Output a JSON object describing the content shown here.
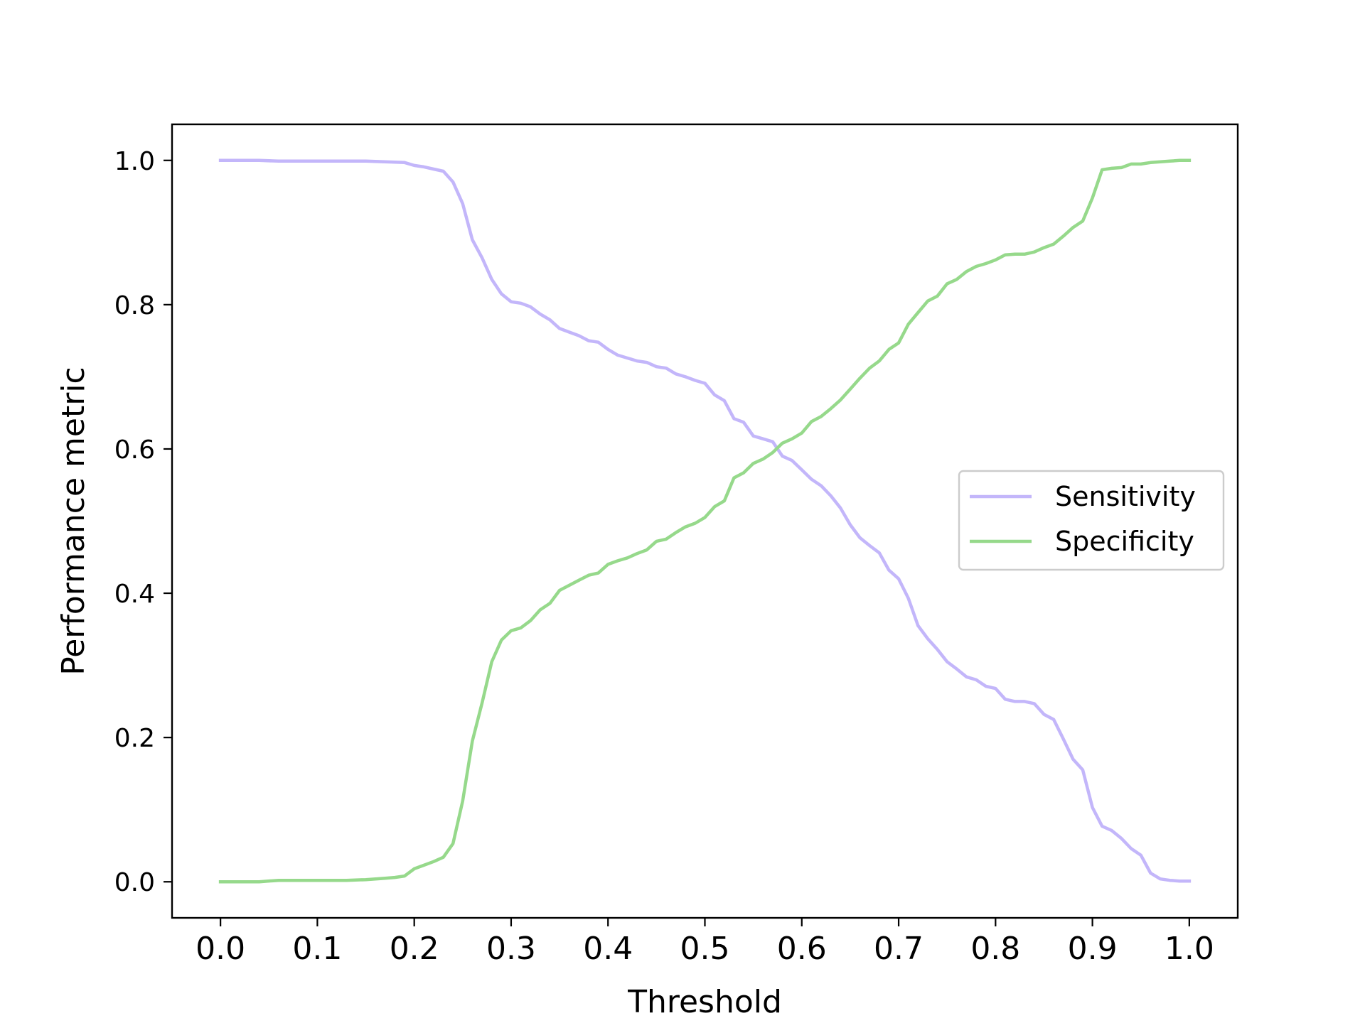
{
  "colors": {
    "sensitivity": "#c3b6fa",
    "specificity": "#96d98b",
    "axis": "#000000",
    "legend_border": "#cccccc"
  },
  "chart_data": {
    "type": "line",
    "title": "",
    "xlabel": "Threshold",
    "ylabel": "Performance metric",
    "xlim": [
      -0.05,
      1.05
    ],
    "ylim": [
      -0.05,
      1.05
    ],
    "xticks": [
      0.0,
      0.1,
      0.2,
      0.3,
      0.4,
      0.5,
      0.6,
      0.7,
      0.8,
      0.9,
      1.0
    ],
    "xtick_labels": [
      "0.0",
      "0.1",
      "0.2",
      "0.3",
      "0.4",
      "0.5",
      "0.6",
      "0.7",
      "0.8",
      "0.9",
      "1.0"
    ],
    "yticks": [
      0.0,
      0.2,
      0.4,
      0.6,
      0.8,
      1.0
    ],
    "ytick_labels": [
      "0.0",
      "0.2",
      "0.4",
      "0.6",
      "0.8",
      "1.0"
    ],
    "grid": false,
    "legend_position": "center-right",
    "series": [
      {
        "name": "Sensitivity",
        "color": "#c3b6fa",
        "x": [
          0.0,
          0.04,
          0.06,
          0.15,
          0.17,
          0.19,
          0.2,
          0.21,
          0.22,
          0.23,
          0.24,
          0.25,
          0.26,
          0.27,
          0.28,
          0.29,
          0.3,
          0.31,
          0.32,
          0.33,
          0.34,
          0.35,
          0.36,
          0.37,
          0.38,
          0.39,
          0.4,
          0.41,
          0.42,
          0.43,
          0.44,
          0.45,
          0.46,
          0.47,
          0.48,
          0.49,
          0.5,
          0.51,
          0.52,
          0.53,
          0.54,
          0.55,
          0.56,
          0.57,
          0.58,
          0.59,
          0.6,
          0.61,
          0.62,
          0.63,
          0.64,
          0.65,
          0.66,
          0.67,
          0.68,
          0.69,
          0.7,
          0.71,
          0.72,
          0.73,
          0.74,
          0.75,
          0.76,
          0.77,
          0.78,
          0.79,
          0.8,
          0.81,
          0.82,
          0.83,
          0.84,
          0.85,
          0.86,
          0.87,
          0.88,
          0.89,
          0.9,
          0.91,
          0.92,
          0.93,
          0.94,
          0.95,
          0.96,
          0.97,
          0.98,
          0.99,
          1.0
        ],
        "y": [
          1.0,
          1.0,
          0.999,
          0.999,
          0.998,
          0.997,
          0.993,
          0.991,
          0.988,
          0.985,
          0.97,
          0.94,
          0.89,
          0.865,
          0.835,
          0.815,
          0.804,
          0.802,
          0.797,
          0.787,
          0.779,
          0.767,
          0.762,
          0.757,
          0.75,
          0.748,
          0.738,
          0.73,
          0.726,
          0.722,
          0.72,
          0.714,
          0.712,
          0.704,
          0.7,
          0.695,
          0.691,
          0.675,
          0.667,
          0.642,
          0.637,
          0.618,
          0.614,
          0.61,
          0.59,
          0.584,
          0.571,
          0.558,
          0.549,
          0.535,
          0.518,
          0.495,
          0.477,
          0.466,
          0.456,
          0.432,
          0.42,
          0.393,
          0.355,
          0.337,
          0.322,
          0.305,
          0.295,
          0.284,
          0.28,
          0.271,
          0.268,
          0.253,
          0.25,
          0.25,
          0.247,
          0.232,
          0.225,
          0.198,
          0.17,
          0.155,
          0.103,
          0.077,
          0.071,
          0.06,
          0.046,
          0.037,
          0.012,
          0.004,
          0.002,
          0.001,
          0.001
        ]
      },
      {
        "name": "Specificity",
        "color": "#96d98b",
        "x": [
          0.0,
          0.04,
          0.06,
          0.13,
          0.15,
          0.17,
          0.18,
          0.19,
          0.2,
          0.21,
          0.22,
          0.23,
          0.24,
          0.25,
          0.26,
          0.27,
          0.28,
          0.29,
          0.3,
          0.31,
          0.32,
          0.33,
          0.34,
          0.35,
          0.36,
          0.37,
          0.38,
          0.39,
          0.4,
          0.41,
          0.42,
          0.43,
          0.44,
          0.45,
          0.46,
          0.47,
          0.48,
          0.49,
          0.5,
          0.51,
          0.52,
          0.53,
          0.54,
          0.55,
          0.56,
          0.57,
          0.58,
          0.59,
          0.6,
          0.61,
          0.62,
          0.63,
          0.64,
          0.65,
          0.66,
          0.67,
          0.68,
          0.69,
          0.7,
          0.71,
          0.72,
          0.73,
          0.74,
          0.75,
          0.76,
          0.77,
          0.78,
          0.79,
          0.8,
          0.81,
          0.82,
          0.83,
          0.84,
          0.85,
          0.86,
          0.87,
          0.88,
          0.89,
          0.9,
          0.91,
          0.92,
          0.93,
          0.94,
          0.95,
          0.96,
          0.97,
          0.98,
          0.99,
          1.0
        ],
        "y": [
          0.0,
          0.0,
          0.002,
          0.002,
          0.003,
          0.005,
          0.006,
          0.008,
          0.018,
          0.023,
          0.028,
          0.034,
          0.053,
          0.112,
          0.195,
          0.248,
          0.305,
          0.335,
          0.348,
          0.352,
          0.362,
          0.377,
          0.386,
          0.404,
          0.411,
          0.418,
          0.425,
          0.428,
          0.44,
          0.445,
          0.449,
          0.455,
          0.46,
          0.472,
          0.475,
          0.484,
          0.492,
          0.497,
          0.505,
          0.52,
          0.528,
          0.56,
          0.567,
          0.58,
          0.586,
          0.595,
          0.608,
          0.614,
          0.622,
          0.638,
          0.645,
          0.656,
          0.668,
          0.683,
          0.698,
          0.712,
          0.722,
          0.738,
          0.747,
          0.773,
          0.789,
          0.805,
          0.812,
          0.829,
          0.835,
          0.846,
          0.853,
          0.857,
          0.862,
          0.869,
          0.87,
          0.87,
          0.873,
          0.879,
          0.884,
          0.895,
          0.907,
          0.916,
          0.948,
          0.987,
          0.989,
          0.99,
          0.995,
          0.995,
          0.997,
          0.998,
          0.999,
          1.0,
          1.0
        ]
      }
    ]
  }
}
